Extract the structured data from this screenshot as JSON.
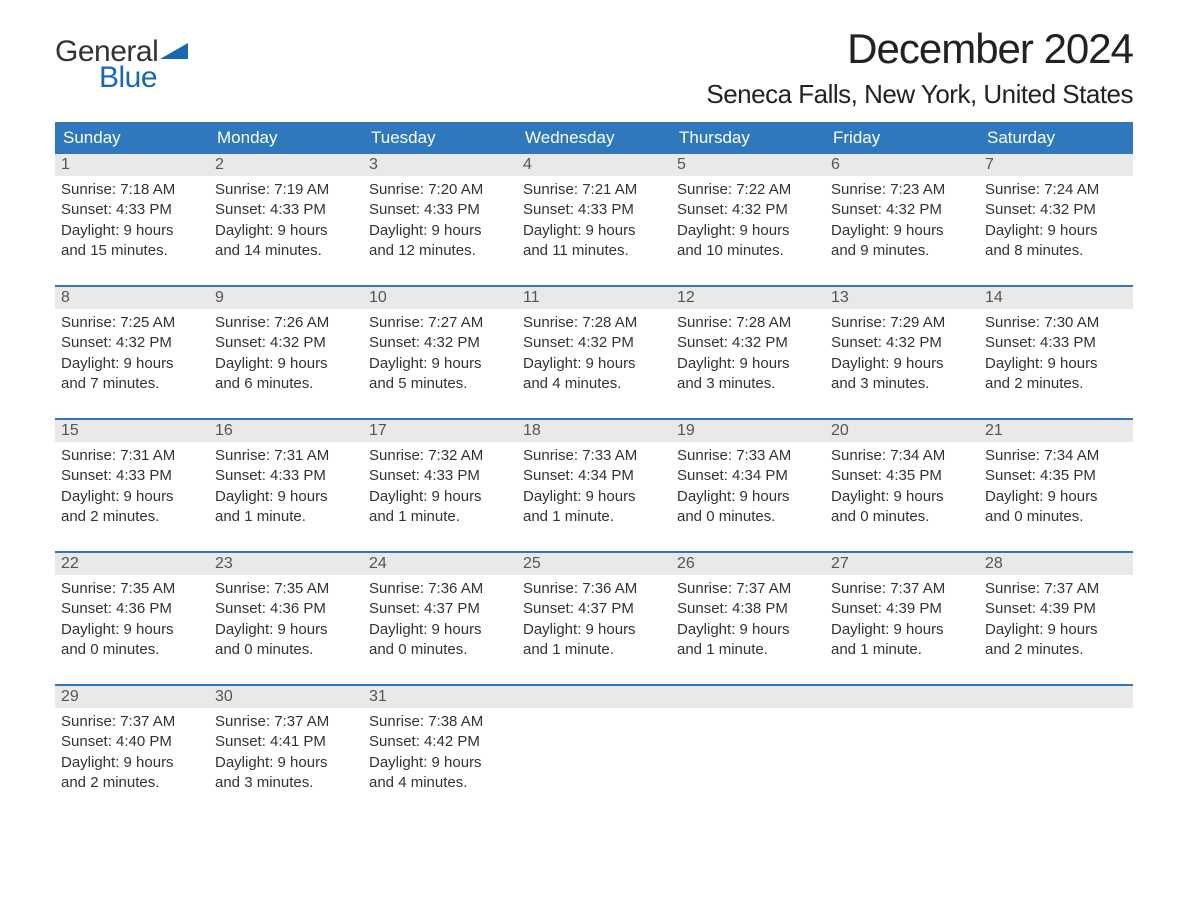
{
  "logo": {
    "text1": "General",
    "text2": "Blue",
    "tri_color": "#1768b0"
  },
  "title": "December 2024",
  "location": "Seneca Falls, New York, United States",
  "colors": {
    "header_bg": "#2e78bb",
    "header_text": "#ffffff",
    "date_bg": "#e9e9e9",
    "week_border": "#2e78bb",
    "body_text": "#333333",
    "logo_blue": "#1768b0"
  },
  "day_names": [
    "Sunday",
    "Monday",
    "Tuesday",
    "Wednesday",
    "Thursday",
    "Friday",
    "Saturday"
  ],
  "weeks": [
    [
      {
        "d": "1",
        "sr": "7:18 AM",
        "ss": "4:33 PM",
        "dl": "9 hours and 15 minutes."
      },
      {
        "d": "2",
        "sr": "7:19 AM",
        "ss": "4:33 PM",
        "dl": "9 hours and 14 minutes."
      },
      {
        "d": "3",
        "sr": "7:20 AM",
        "ss": "4:33 PM",
        "dl": "9 hours and 12 minutes."
      },
      {
        "d": "4",
        "sr": "7:21 AM",
        "ss": "4:33 PM",
        "dl": "9 hours and 11 minutes."
      },
      {
        "d": "5",
        "sr": "7:22 AM",
        "ss": "4:32 PM",
        "dl": "9 hours and 10 minutes."
      },
      {
        "d": "6",
        "sr": "7:23 AM",
        "ss": "4:32 PM",
        "dl": "9 hours and 9 minutes."
      },
      {
        "d": "7",
        "sr": "7:24 AM",
        "ss": "4:32 PM",
        "dl": "9 hours and 8 minutes."
      }
    ],
    [
      {
        "d": "8",
        "sr": "7:25 AM",
        "ss": "4:32 PM",
        "dl": "9 hours and 7 minutes."
      },
      {
        "d": "9",
        "sr": "7:26 AM",
        "ss": "4:32 PM",
        "dl": "9 hours and 6 minutes."
      },
      {
        "d": "10",
        "sr": "7:27 AM",
        "ss": "4:32 PM",
        "dl": "9 hours and 5 minutes."
      },
      {
        "d": "11",
        "sr": "7:28 AM",
        "ss": "4:32 PM",
        "dl": "9 hours and 4 minutes."
      },
      {
        "d": "12",
        "sr": "7:28 AM",
        "ss": "4:32 PM",
        "dl": "9 hours and 3 minutes."
      },
      {
        "d": "13",
        "sr": "7:29 AM",
        "ss": "4:32 PM",
        "dl": "9 hours and 3 minutes."
      },
      {
        "d": "14",
        "sr": "7:30 AM",
        "ss": "4:33 PM",
        "dl": "9 hours and 2 minutes."
      }
    ],
    [
      {
        "d": "15",
        "sr": "7:31 AM",
        "ss": "4:33 PM",
        "dl": "9 hours and 2 minutes."
      },
      {
        "d": "16",
        "sr": "7:31 AM",
        "ss": "4:33 PM",
        "dl": "9 hours and 1 minute."
      },
      {
        "d": "17",
        "sr": "7:32 AM",
        "ss": "4:33 PM",
        "dl": "9 hours and 1 minute."
      },
      {
        "d": "18",
        "sr": "7:33 AM",
        "ss": "4:34 PM",
        "dl": "9 hours and 1 minute."
      },
      {
        "d": "19",
        "sr": "7:33 AM",
        "ss": "4:34 PM",
        "dl": "9 hours and 0 minutes."
      },
      {
        "d": "20",
        "sr": "7:34 AM",
        "ss": "4:35 PM",
        "dl": "9 hours and 0 minutes."
      },
      {
        "d": "21",
        "sr": "7:34 AM",
        "ss": "4:35 PM",
        "dl": "9 hours and 0 minutes."
      }
    ],
    [
      {
        "d": "22",
        "sr": "7:35 AM",
        "ss": "4:36 PM",
        "dl": "9 hours and 0 minutes."
      },
      {
        "d": "23",
        "sr": "7:35 AM",
        "ss": "4:36 PM",
        "dl": "9 hours and 0 minutes."
      },
      {
        "d": "24",
        "sr": "7:36 AM",
        "ss": "4:37 PM",
        "dl": "9 hours and 0 minutes."
      },
      {
        "d": "25",
        "sr": "7:36 AM",
        "ss": "4:37 PM",
        "dl": "9 hours and 1 minute."
      },
      {
        "d": "26",
        "sr": "7:37 AM",
        "ss": "4:38 PM",
        "dl": "9 hours and 1 minute."
      },
      {
        "d": "27",
        "sr": "7:37 AM",
        "ss": "4:39 PM",
        "dl": "9 hours and 1 minute."
      },
      {
        "d": "28",
        "sr": "7:37 AM",
        "ss": "4:39 PM",
        "dl": "9 hours and 2 minutes."
      }
    ],
    [
      {
        "d": "29",
        "sr": "7:37 AM",
        "ss": "4:40 PM",
        "dl": "9 hours and 2 minutes."
      },
      {
        "d": "30",
        "sr": "7:37 AM",
        "ss": "4:41 PM",
        "dl": "9 hours and 3 minutes."
      },
      {
        "d": "31",
        "sr": "7:38 AM",
        "ss": "4:42 PM",
        "dl": "9 hours and 4 minutes."
      },
      null,
      null,
      null,
      null
    ]
  ],
  "labels": {
    "sunrise": "Sunrise:",
    "sunset": "Sunset:",
    "daylight": "Daylight:"
  }
}
